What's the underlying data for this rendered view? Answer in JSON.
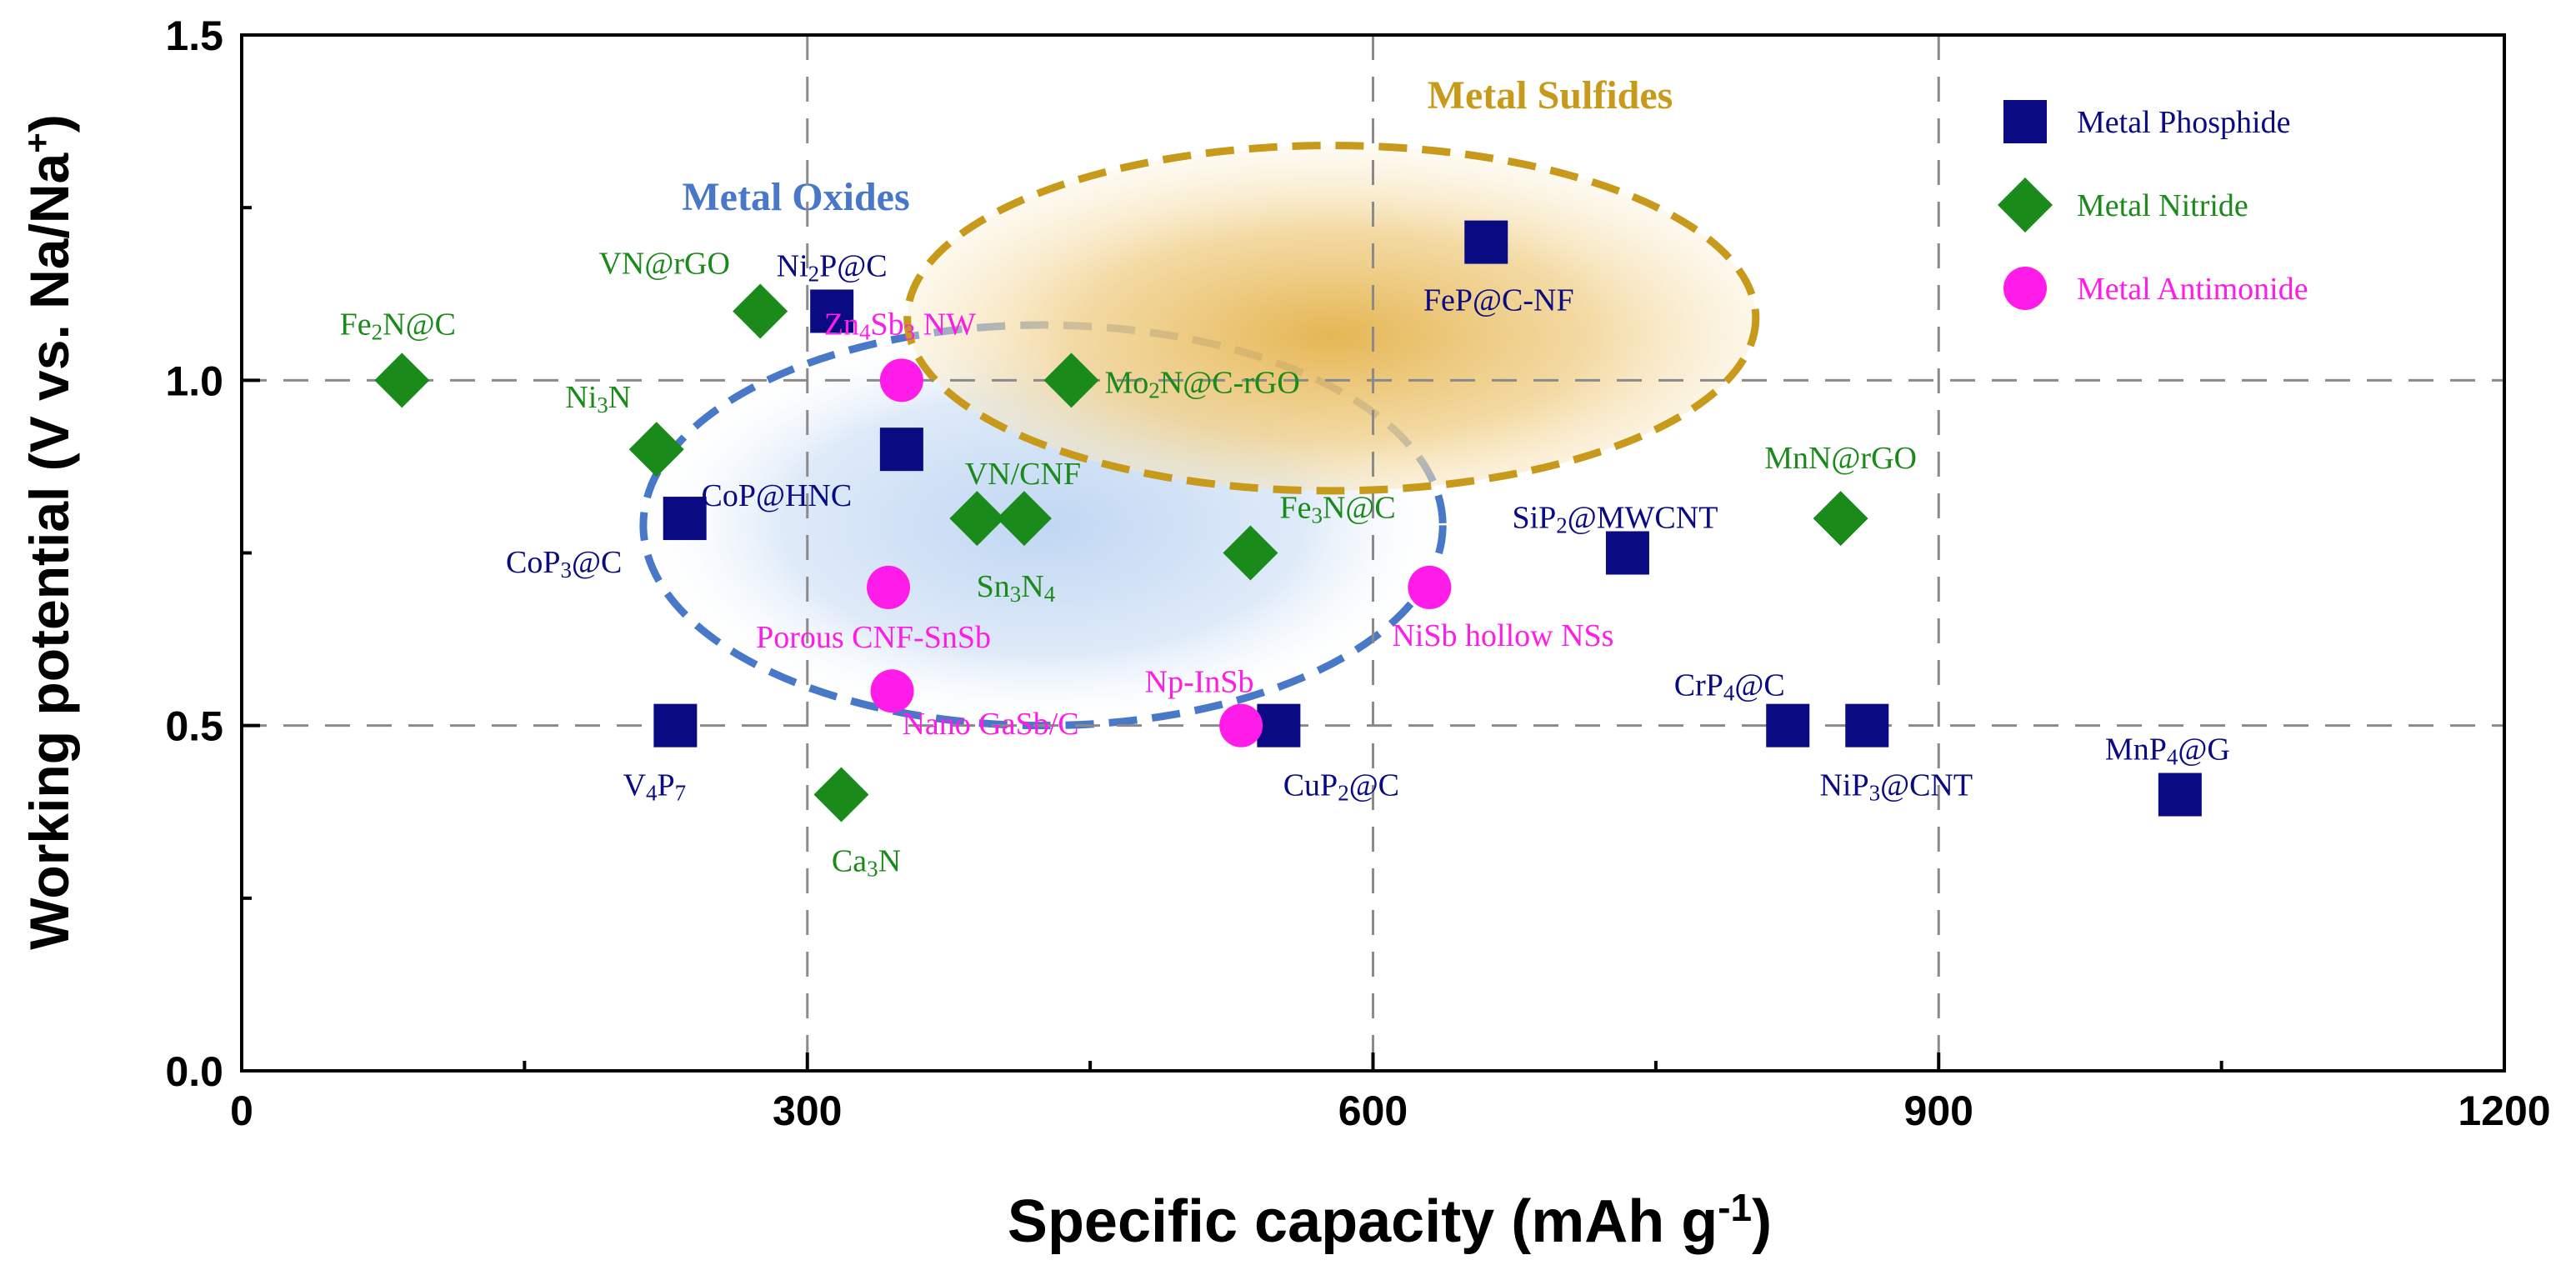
{
  "chart_data": {
    "type": "scatter",
    "xlabel": "Specific capacity (mAh g",
    "xlabel_sup": "-1",
    "xlabel_end": ")",
    "ylabel": "Working potential (V vs. Na/Na",
    "ylabel_sup": "+",
    "ylabel_end": ")",
    "xlim": [
      0,
      1200
    ],
    "ylim": [
      0,
      1.5
    ],
    "x_ticks": [
      {
        "value": 0,
        "label": "0"
      },
      {
        "value": 300,
        "label": "300"
      },
      {
        "value": 600,
        "label": "600"
      },
      {
        "value": 900,
        "label": "900"
      },
      {
        "value": 1200,
        "label": "1200"
      }
    ],
    "y_ticks": [
      {
        "value": 0,
        "label": "0.0"
      },
      {
        "value": 0.5,
        "label": "0.5"
      },
      {
        "value": 1.0,
        "label": "1.0"
      },
      {
        "value": 1.5,
        "label": "1.5"
      }
    ],
    "grid": "dashed at x=300,600,900 and y=0.5,1.0",
    "legend": {
      "position": "top-right",
      "entries": [
        {
          "name": "Metal Phosphide",
          "marker": "square",
          "color": "#0a0a82"
        },
        {
          "name": "Metal Nitride",
          "marker": "diamond",
          "color": "#1a8a1a"
        },
        {
          "name": "Metal Antimonide",
          "marker": "circle",
          "color": "#ff1ce8"
        }
      ]
    },
    "regions": [
      {
        "name": "Metal Oxides",
        "color": "#4a78c8",
        "center": [
          425,
          0.79
        ],
        "radii": [
          212,
          0.29
        ]
      },
      {
        "name": "Metal Sulfides",
        "color": "#c89a1c",
        "center": [
          578,
          1.09
        ],
        "radii": [
          225,
          0.25
        ]
      }
    ],
    "series": [
      {
        "name": "Metal Phosphide",
        "marker": "square",
        "color": "#0a0a82",
        "points": [
          {
            "x": 313,
            "y": 1.1,
            "label": "Ni",
            "sub": "2",
            "rest": "P@C"
          },
          {
            "x": 350,
            "y": 0.9,
            "label": "CoP@HNC"
          },
          {
            "x": 235,
            "y": 0.8,
            "label": "CoP",
            "sub": "3",
            "rest": "@C"
          },
          {
            "x": 230,
            "y": 0.5,
            "label": "V",
            "sub": "4",
            "rest": "P",
            "sub2": "7"
          },
          {
            "x": 550,
            "y": 0.5,
            "label": "CuP",
            "sub": "2",
            "rest": "@C"
          },
          {
            "x": 660,
            "y": 1.2,
            "label": "FeP@C-NF"
          },
          {
            "x": 735,
            "y": 0.75,
            "label": "SiP",
            "sub": "2",
            "rest": "@MWCNT"
          },
          {
            "x": 820,
            "y": 0.5,
            "label": "CrP",
            "sub": "4",
            "rest": "@C"
          },
          {
            "x": 862,
            "y": 0.5,
            "label": "NiP",
            "sub": "3",
            "rest": "@CNT"
          },
          {
            "x": 1028,
            "y": 0.4,
            "label": "MnP",
            "sub": "4",
            "rest": "@G"
          }
        ]
      },
      {
        "name": "Metal Nitride",
        "marker": "diamond",
        "color": "#1a8a1a",
        "points": [
          {
            "x": 85,
            "y": 1.0,
            "label": "Fe",
            "sub": "2",
            "rest": "N@C"
          },
          {
            "x": 275,
            "y": 1.1,
            "label": "VN@rGO"
          },
          {
            "x": 220,
            "y": 0.9,
            "label": "Ni",
            "sub": "3",
            "rest": "N"
          },
          {
            "x": 440,
            "y": 1.0,
            "label": "Mo",
            "sub": "2",
            "rest": "N@C-rGO"
          },
          {
            "x": 390,
            "y": 0.8,
            "label": "VN/CNF"
          },
          {
            "x": 415,
            "y": 0.8,
            "label": "Sn",
            "sub": "3",
            "rest": "N",
            "sub2": "4"
          },
          {
            "x": 535,
            "y": 0.75,
            "label": "Fe",
            "sub": "3",
            "rest": "N@C"
          },
          {
            "x": 318,
            "y": 0.4,
            "label": "Ca",
            "sub": "3",
            "rest": "N"
          },
          {
            "x": 848,
            "y": 0.8,
            "label": "MnN@rGO"
          }
        ]
      },
      {
        "name": "Metal Antimonide",
        "marker": "circle",
        "color": "#ff1ce8",
        "points": [
          {
            "x": 350,
            "y": 1.0,
            "label": "Zn",
            "sub": "4",
            "rest": "Sb",
            "sub2": "3",
            "rest2": " NW"
          },
          {
            "x": 343,
            "y": 0.7,
            "label": "Porous CNF-SnSb"
          },
          {
            "x": 345,
            "y": 0.55,
            "label": "Nano GaSb/C"
          },
          {
            "x": 530,
            "y": 0.5,
            "label": "Np-InSb"
          },
          {
            "x": 630,
            "y": 0.7,
            "label": "NiSb  hollow  NSs"
          }
        ]
      }
    ]
  }
}
